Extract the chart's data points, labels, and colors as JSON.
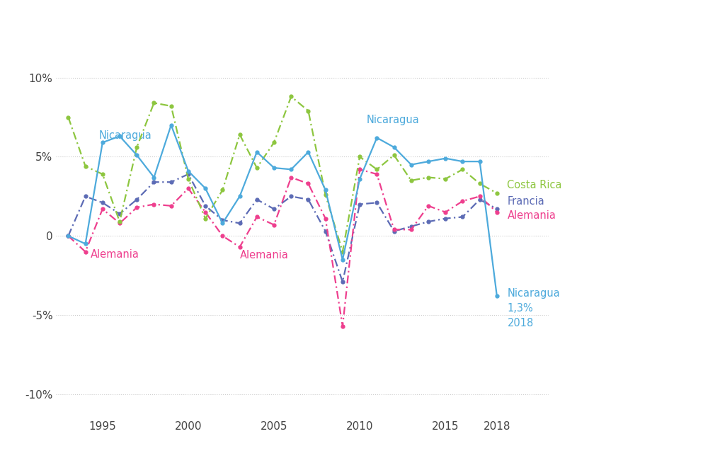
{
  "years": [
    1993,
    1994,
    1995,
    1996,
    1997,
    1998,
    1999,
    2000,
    2001,
    2002,
    2003,
    2004,
    2005,
    2006,
    2007,
    2008,
    2009,
    2010,
    2011,
    2012,
    2013,
    2014,
    2015,
    2016,
    2017,
    2018
  ],
  "nicaragua": [
    0.0,
    -0.5,
    5.9,
    6.3,
    5.1,
    3.7,
    7.0,
    4.1,
    3.0,
    0.8,
    2.5,
    5.3,
    4.3,
    4.2,
    5.3,
    2.9,
    -1.5,
    3.6,
    6.2,
    5.6,
    4.5,
    4.7,
    4.9,
    4.7,
    4.7,
    -3.8
  ],
  "costa_rica": [
    7.5,
    4.4,
    3.9,
    0.9,
    5.6,
    8.4,
    8.2,
    3.6,
    1.1,
    2.9,
    6.4,
    4.3,
    5.9,
    8.8,
    7.9,
    2.6,
    -1.0,
    5.0,
    4.2,
    5.1,
    3.5,
    3.7,
    3.6,
    4.2,
    3.3,
    2.7
  ],
  "francia": [
    0.0,
    2.5,
    2.1,
    1.4,
    2.3,
    3.4,
    3.4,
    3.9,
    1.9,
    1.0,
    0.8,
    2.3,
    1.7,
    2.5,
    2.3,
    0.3,
    -2.9,
    2.0,
    2.1,
    0.3,
    0.6,
    0.9,
    1.1,
    1.2,
    2.3,
    1.7
  ],
  "alemania": [
    0.0,
    -1.0,
    1.7,
    0.8,
    1.8,
    2.0,
    1.9,
    3.0,
    1.5,
    0.0,
    -0.7,
    1.2,
    0.7,
    3.7,
    3.3,
    1.1,
    -5.7,
    4.2,
    3.9,
    0.4,
    0.4,
    1.9,
    1.5,
    2.2,
    2.5,
    1.5
  ],
  "nicaragua_color": "#4DAADC",
  "costa_rica_color": "#8DC63F",
  "francia_color": "#5C6BB5",
  "alemania_color": "#EE3F8E",
  "ylim": [
    -11.5,
    12.5
  ],
  "yticks": [
    -10,
    -5,
    0,
    5,
    10
  ],
  "ytick_labels": [
    "-10%",
    "-5%",
    "0",
    "5%",
    "10%"
  ],
  "background_color": "#FFFFFF",
  "grid_color": "#CCCCCC"
}
